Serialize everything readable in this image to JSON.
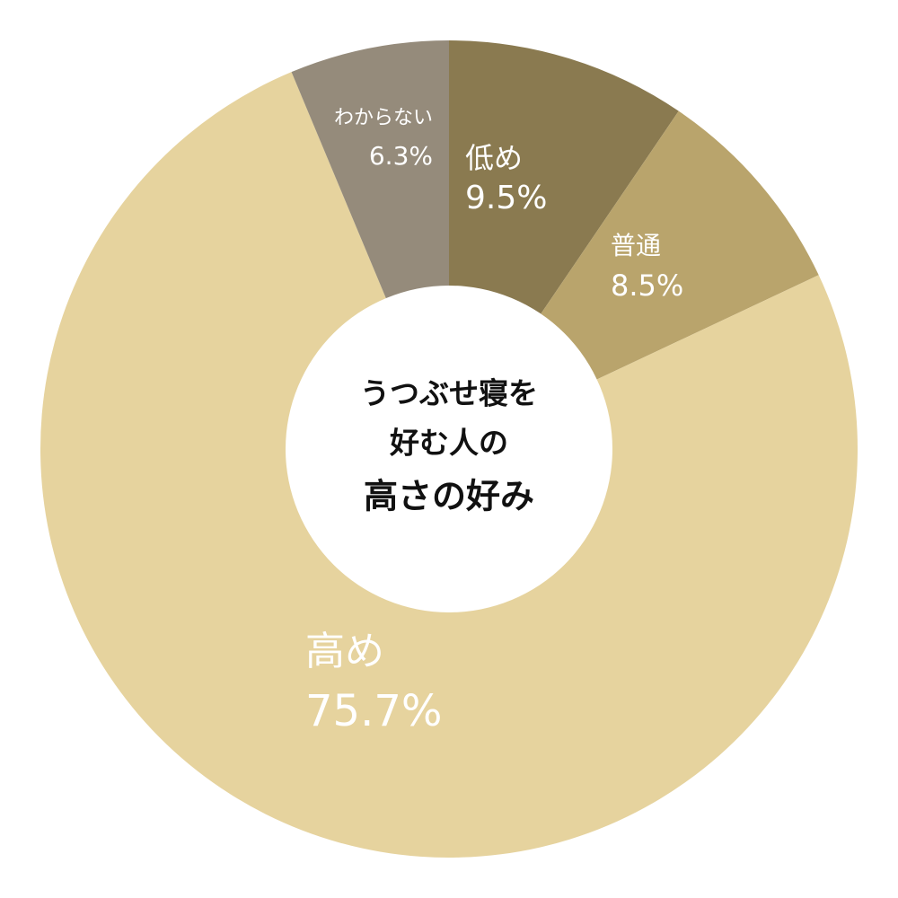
{
  "chart_data": {
    "type": "donut",
    "center_label": [
      "うつぶせ寝を",
      "好む人の",
      "高さの好み"
    ],
    "categories": [
      "低め",
      "普通",
      "高め",
      "わからない"
    ],
    "values": [
      9.5,
      8.5,
      75.7,
      6.3
    ],
    "value_labels": [
      "9.5%",
      "8.5%",
      "75.7%",
      "6.3%"
    ],
    "colors": [
      "#8a7a50",
      "#b9a46c",
      "#e6d39e",
      "#958b7b"
    ]
  }
}
